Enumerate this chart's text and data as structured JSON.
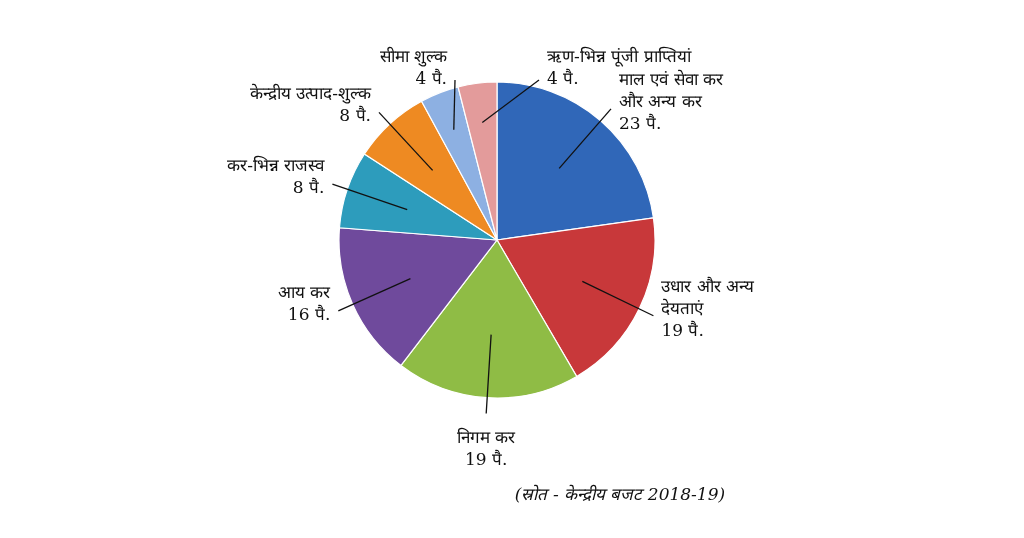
{
  "chart_data": {
    "type": "pie",
    "categories": [
      "माल एवं सेवा कर और अन्य कर",
      "उधार और अन्य देयताएं",
      "निगम कर",
      "आय कर",
      "कर-भिन्न राजस्व",
      "केन्द्रीय उत्पाद-शुल्क",
      "सीमा शुल्क",
      "ऋण-भिन्न पूंजी प्राप्तियां"
    ],
    "values": [
      23,
      19,
      19,
      16,
      8,
      8,
      4,
      4
    ],
    "value_labels": [
      "23 पै.",
      "19 पै.",
      "19 पै.",
      "16 पै.",
      "8 पै.",
      "8 पै.",
      "4 पै.",
      "4 पै."
    ],
    "colors": [
      "#3067b8",
      "#c8383a",
      "#8fbc45",
      "#6f4a9c",
      "#2d9cbc",
      "#ee8a22",
      "#8db0e2",
      "#e39b9b"
    ],
    "annotations": [
      "(स्रोत - केन्द्रीय बजट 2018-19)"
    ]
  }
}
